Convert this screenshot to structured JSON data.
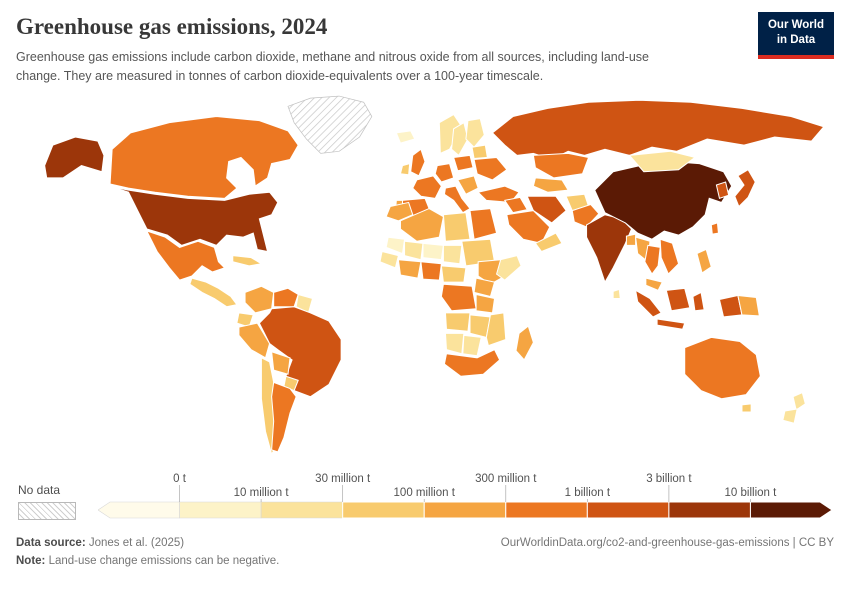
{
  "header": {
    "title": "Greenhouse gas emissions, 2024",
    "subtitle": "Greenhouse gas emissions include carbon dioxide, methane and nitrous oxide from all sources, including land-use change. They are measured in tonnes of carbon dioxide-equivalents over a 100-year timescale.",
    "logo": {
      "line1": "Our World",
      "line2": "in Data",
      "bg": "#002147",
      "accent": "#dc2c20"
    }
  },
  "chart_data": {
    "type": "choropleth",
    "title": "Greenhouse gas emissions, 2024",
    "unit": "tonnes of carbon dioxide-equivalents",
    "legend": {
      "no_data_label": "No data",
      "tick_labels": [
        "0 t",
        "10 million t",
        "30 million t",
        "100 million t",
        "300 million t",
        "1 billion t",
        "3 billion t",
        "10 billion t"
      ],
      "palette": [
        "#fffbea",
        "#fdf3c8",
        "#fbe39c",
        "#f8cb6e",
        "#f5a542",
        "#ec7722",
        "#cf5413",
        "#9c360a",
        "#5b1a05"
      ],
      "bin_ranges": [
        "negative",
        "0-10 million t",
        "10-30 million t",
        "30-100 million t",
        "100-300 million t",
        "300 million-1 billion t",
        "1-3 billion t",
        "3-10 billion t",
        "10+ billion t"
      ]
    },
    "regions": {
      "greenland": "nodata",
      "alaska": 7,
      "canada": 5,
      "usa": 7,
      "mexico": 5,
      "central-america": 3,
      "cuba": 3,
      "colombia": 4,
      "venezuela": 5,
      "guyanas": 2,
      "ecuador": 3,
      "peru": 4,
      "brazil": 6,
      "bolivia": 4,
      "paraguay": 3,
      "chile": 3,
      "argentina": 5,
      "iceland": 1,
      "uk": 5,
      "ireland": 3,
      "norway": 2,
      "sweden": 2,
      "finland": 2,
      "france": 5,
      "spain": 5,
      "portugal": 4,
      "germany": 5,
      "italy": 5,
      "poland": 5,
      "balkans": 4,
      "baltics": 3,
      "ukraine": 5,
      "turkey": 5,
      "russia": 6,
      "kazakhstan": 5,
      "central-asia": 4,
      "iraq": 5,
      "iran": 6,
      "saudi-arabia": 5,
      "yemen-oman": 3,
      "morocco": 4,
      "algeria": 4,
      "libya": 3,
      "egypt": 5,
      "mauritania": 1,
      "mali": 2,
      "niger": 1,
      "chad": 2,
      "sudan": 3,
      "senegal-guinea": 2,
      "ivory-ghana": 4,
      "nigeria": 5,
      "cameroon-car": 3,
      "ethiopia": 4,
      "somalia": 2,
      "kenya-uganda": 4,
      "drc": 5,
      "tanzania": 4,
      "angola": 3,
      "zambia-zimbabwe": 3,
      "mozambique": 3,
      "namibia": 2,
      "botswana": 2,
      "south-africa": 5,
      "madagascar": 4,
      "afghanistan": 3,
      "pakistan": 5,
      "india": 7,
      "bangladesh": 4,
      "sri-lanka": 2,
      "china": 8,
      "mongolia": 2,
      "myanmar": 4,
      "thailand": 5,
      "vietnam": 5,
      "malaysia": 4,
      "sumatra": 6,
      "java": 6,
      "borneo": 6,
      "sulawesi": 6,
      "west-papua": 6,
      "papua-new-guinea": 4,
      "philippines": 4,
      "korea": 6,
      "japan": 6,
      "taiwan": 5,
      "australia": 5,
      "tasmania": 3,
      "nz-north": 2,
      "nz-south": 2
    }
  },
  "footer": {
    "source_label": "Data source:",
    "source_value": " Jones et al. (2025)",
    "url": "OurWorldinData.org/co2-and-greenhouse-gas-emissions | CC BY",
    "note_label": "Note:",
    "note_value": " Land-use change emissions can be negative."
  }
}
